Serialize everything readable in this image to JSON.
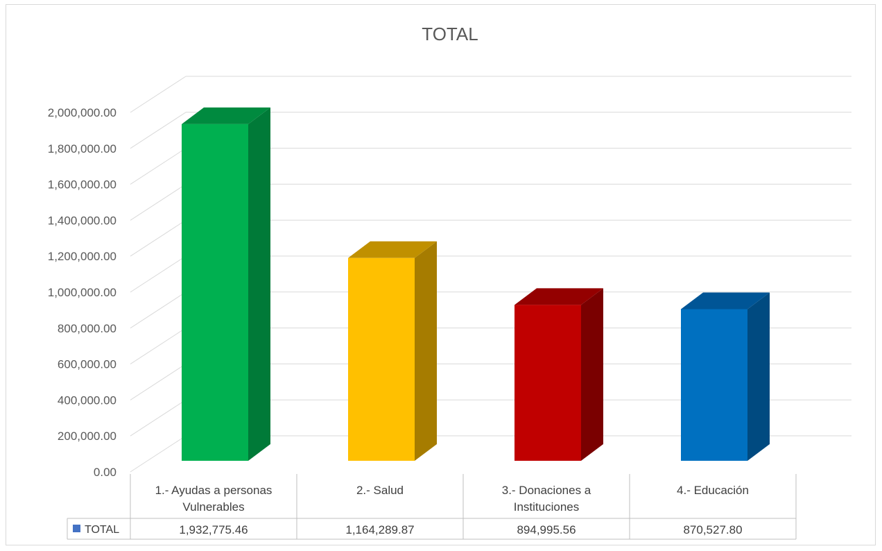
{
  "chart_data": {
    "type": "bar",
    "title": "TOTAL",
    "categories": [
      [
        "1.- Ayudas a personas",
        "Vulnerables"
      ],
      [
        "2.- Salud"
      ],
      [
        "3.- Donaciones a",
        "Instituciones"
      ],
      [
        "4.- Educación"
      ]
    ],
    "series": [
      {
        "name": "TOTAL",
        "values": [
          1932775.46,
          1164289.87,
          894995.56,
          870527.8
        ],
        "value_labels": [
          "1,932,775.46",
          "1,164,289.87",
          "894,995.56",
          "870,527.80"
        ]
      }
    ],
    "bar_colors": [
      "#00B050",
      "#FFC000",
      "#C00000",
      "#0070C0"
    ],
    "bar_side_colors": [
      "#007A38",
      "#A67C00",
      "#7A0000",
      "#004A80"
    ],
    "bar_top_colors": [
      "#008A3F",
      "#C09000",
      "#940000",
      "#005596"
    ],
    "legend_color": "#4472C4",
    "yticks": [
      "0.00",
      "200,000.00",
      "400,000.00",
      "600,000.00",
      "800,000.00",
      "1,000,000.00",
      "1,200,000.00",
      "1,400,000.00",
      "1,600,000.00",
      "1,800,000.00",
      "2,000,000.00"
    ],
    "ylim": [
      0,
      2000000
    ],
    "grid": true,
    "legend": "data-table",
    "style": "3d-column"
  }
}
